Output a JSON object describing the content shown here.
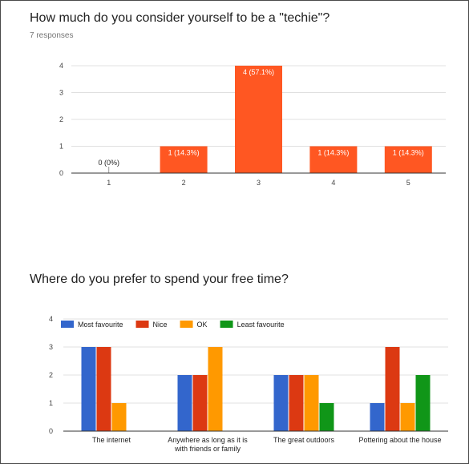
{
  "question1": {
    "title": "How much do you consider yourself to be a \"techie\"?",
    "responses": "7 responses"
  },
  "question2": {
    "title": "Where do you prefer to spend your free time?"
  },
  "chart_data": [
    {
      "type": "bar",
      "categories": [
        "1",
        "2",
        "3",
        "4",
        "5"
      ],
      "values": [
        0,
        1,
        4,
        1,
        1
      ],
      "data_labels": [
        "0 (0%)",
        "1 (14.3%)",
        "4 (57.1%)",
        "1 (14.3%)",
        "1 (14.3%)"
      ],
      "ylim": [
        0,
        4
      ],
      "yticks": [
        0,
        1,
        2,
        3,
        4
      ],
      "grid": true,
      "color": "#ff5722"
    },
    {
      "type": "bar",
      "categories": [
        [
          "The internet"
        ],
        [
          "Anywhere as long as it is",
          "with friends or family"
        ],
        [
          "The great outdoors"
        ],
        [
          "Pottering about the house"
        ]
      ],
      "series": [
        {
          "name": "Most favourite",
          "values": [
            3,
            2,
            2,
            1
          ],
          "color": "#3366cc"
        },
        {
          "name": "Nice",
          "values": [
            3,
            2,
            2,
            3
          ],
          "color": "#dc3912"
        },
        {
          "name": "OK",
          "values": [
            1,
            3,
            2,
            1
          ],
          "color": "#ff9900"
        },
        {
          "name": "Least favourite",
          "values": [
            0,
            0,
            1,
            2
          ],
          "color": "#109618"
        }
      ],
      "ylim": [
        0,
        4
      ],
      "yticks": [
        0,
        1,
        2,
        3,
        4
      ],
      "grid": true,
      "legend": "top"
    }
  ]
}
